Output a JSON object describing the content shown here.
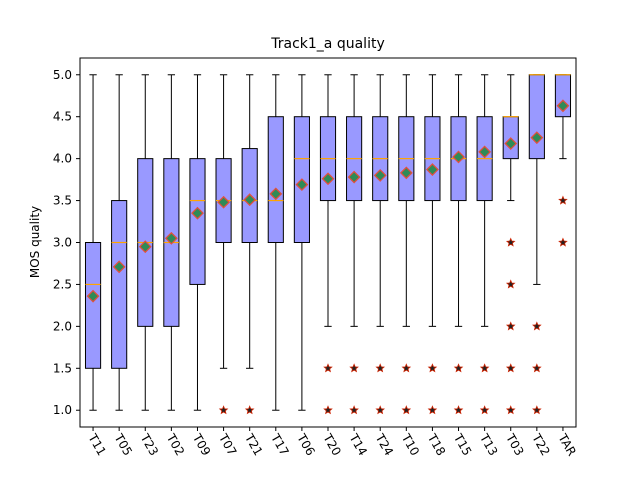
{
  "chart_data": {
    "type": "boxplot",
    "title": "Track1_a quality",
    "xlabel": "",
    "ylabel": "MOS quality",
    "ylim": [
      0.8,
      5.2
    ],
    "yticks": [
      "1.0",
      "1.5",
      "2.0",
      "2.5",
      "3.0",
      "3.5",
      "4.0",
      "4.5",
      "5.0"
    ],
    "grid": false,
    "colors": {
      "box_fill": "#9999ff",
      "median": "#ffa500",
      "mean_fill": "#2e8b57",
      "mean_edge": "#e0503c",
      "outlier_fill": "#222222",
      "outlier_edge": "#cc2200"
    },
    "categories": [
      "T11",
      "T05",
      "T23",
      "T02",
      "T09",
      "T07",
      "T21",
      "T17",
      "T06",
      "T20",
      "T14",
      "T24",
      "T10",
      "T18",
      "T15",
      "T13",
      "T03",
      "T22",
      "TAR"
    ],
    "boxes": [
      {
        "label": "T11",
        "whislo": 1.0,
        "q1": 1.5,
        "median": 2.5,
        "q3": 3.0,
        "whishi": 5.0,
        "mean": 2.36,
        "fliers": []
      },
      {
        "label": "T05",
        "whislo": 1.0,
        "q1": 1.5,
        "median": 3.0,
        "q3": 3.5,
        "whishi": 5.0,
        "mean": 2.71,
        "fliers": []
      },
      {
        "label": "T23",
        "whislo": 1.0,
        "q1": 2.0,
        "median": 3.0,
        "q3": 4.0,
        "whishi": 5.0,
        "mean": 2.95,
        "fliers": []
      },
      {
        "label": "T02",
        "whislo": 1.0,
        "q1": 2.0,
        "median": 3.0,
        "q3": 4.0,
        "whishi": 5.0,
        "mean": 3.05,
        "fliers": []
      },
      {
        "label": "T09",
        "whislo": 1.0,
        "q1": 2.5,
        "median": 3.5,
        "q3": 4.0,
        "whishi": 5.0,
        "mean": 3.35,
        "fliers": []
      },
      {
        "label": "T07",
        "whislo": 1.5,
        "q1": 3.0,
        "median": 3.5,
        "q3": 4.0,
        "whishi": 5.0,
        "mean": 3.48,
        "fliers": [
          1.0
        ]
      },
      {
        "label": "T21",
        "whislo": 1.5,
        "q1": 3.0,
        "median": 3.5,
        "q3": 4.12,
        "whishi": 5.0,
        "mean": 3.51,
        "fliers": [
          1.0
        ]
      },
      {
        "label": "T17",
        "whislo": 1.0,
        "q1": 3.0,
        "median": 3.5,
        "q3": 4.5,
        "whishi": 5.0,
        "mean": 3.58,
        "fliers": []
      },
      {
        "label": "T06",
        "whislo": 1.0,
        "q1": 3.0,
        "median": 4.0,
        "q3": 4.5,
        "whishi": 5.0,
        "mean": 3.69,
        "fliers": []
      },
      {
        "label": "T20",
        "whislo": 2.0,
        "q1": 3.5,
        "median": 4.0,
        "q3": 4.5,
        "whishi": 5.0,
        "mean": 3.76,
        "fliers": [
          1.0,
          1.5
        ]
      },
      {
        "label": "T14",
        "whislo": 2.0,
        "q1": 3.5,
        "median": 4.0,
        "q3": 4.5,
        "whishi": 5.0,
        "mean": 3.78,
        "fliers": [
          1.0,
          1.5
        ]
      },
      {
        "label": "T24",
        "whislo": 2.0,
        "q1": 3.5,
        "median": 4.0,
        "q3": 4.5,
        "whishi": 5.0,
        "mean": 3.8,
        "fliers": [
          1.0,
          1.5
        ]
      },
      {
        "label": "T10",
        "whislo": 2.0,
        "q1": 3.5,
        "median": 4.0,
        "q3": 4.5,
        "whishi": 5.0,
        "mean": 3.83,
        "fliers": [
          1.0,
          1.5
        ]
      },
      {
        "label": "T18",
        "whislo": 2.0,
        "q1": 3.5,
        "median": 4.0,
        "q3": 4.5,
        "whishi": 5.0,
        "mean": 3.87,
        "fliers": [
          1.0,
          1.5
        ]
      },
      {
        "label": "T15",
        "whislo": 2.0,
        "q1": 3.5,
        "median": 4.0,
        "q3": 4.5,
        "whishi": 5.0,
        "mean": 4.02,
        "fliers": [
          1.0,
          1.5
        ]
      },
      {
        "label": "T13",
        "whislo": 2.0,
        "q1": 3.5,
        "median": 4.0,
        "q3": 4.5,
        "whishi": 5.0,
        "mean": 4.08,
        "fliers": [
          1.0,
          1.5
        ]
      },
      {
        "label": "T03",
        "whislo": 3.5,
        "q1": 4.0,
        "median": 4.5,
        "q3": 4.5,
        "whishi": 5.0,
        "mean": 4.18,
        "fliers": [
          1.0,
          1.5,
          2.0,
          2.5,
          3.0
        ]
      },
      {
        "label": "T22",
        "whislo": 2.5,
        "q1": 4.0,
        "median": 5.0,
        "q3": 5.0,
        "whishi": 5.0,
        "mean": 4.25,
        "fliers": [
          1.0,
          1.5,
          2.0
        ]
      },
      {
        "label": "TAR",
        "whislo": 4.0,
        "q1": 4.5,
        "median": 5.0,
        "q3": 5.0,
        "whishi": 5.0,
        "mean": 4.63,
        "fliers": [
          3.0,
          3.5
        ]
      }
    ]
  }
}
